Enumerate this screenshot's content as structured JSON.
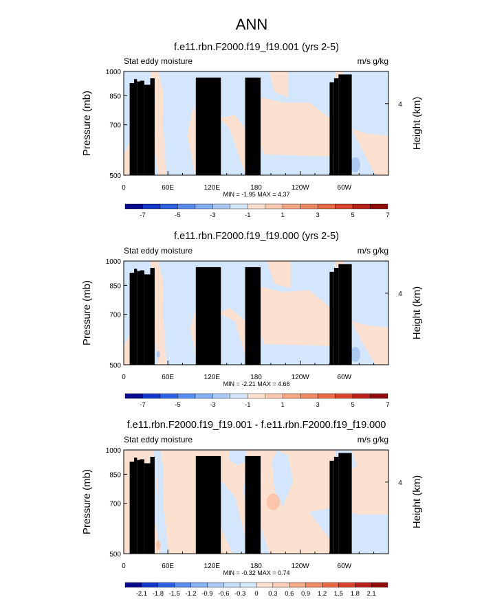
{
  "figure_title": "ANN",
  "colors": {
    "light_blue": "#d3e6fb",
    "light_peach": "#fde1d0",
    "mid_blue": "#aac8f2",
    "mid_peach": "#f9b99a",
    "orange_red": "#ef6e49",
    "topography": "#000000"
  },
  "colormaps": {
    "main": [
      "#0a0a8c",
      "#1438c8",
      "#2e62e0",
      "#5a8cee",
      "#86b0f4",
      "#aac8f2",
      "#d3e6fb",
      "#fde1d0",
      "#f9c8b0",
      "#f5a886",
      "#ef8a66",
      "#e96a46",
      "#d8452c",
      "#b8221c",
      "#900c0c"
    ],
    "diff": [
      "#0a0a8c",
      "#1438c8",
      "#2e62e0",
      "#5a8cee",
      "#86b0f4",
      "#aac8f2",
      "#c4dcf8",
      "#d3e6fb",
      "#fde1d0",
      "#fad0ba",
      "#f5a886",
      "#ef8a66",
      "#e96a46",
      "#d8452c",
      "#b8221c",
      "#900c0c"
    ]
  },
  "chart_data": [
    {
      "type": "heatmap",
      "title": "f.e11.rbn.F2000.f19_f19.001 (yrs 2-5)",
      "left_label": "Stat eddy moisture",
      "right_label": "m/s g/kg",
      "ylabel": "Pressure (mb)",
      "ylabel_right": "Height (km)",
      "yticks": [
        "500",
        "700",
        "850",
        "1000"
      ],
      "yticks_right": [
        "4"
      ],
      "xticks": [
        "0",
        "60E",
        "120E",
        "180",
        "120W",
        "60W"
      ],
      "xlim": [
        0,
        360
      ],
      "ylim": [
        1000,
        500
      ],
      "min_max": "MIN =  -1.95   MAX =   4.37",
      "colorbar_labels": [
        "-7",
        "-5",
        "-3",
        "-1",
        "1",
        "3",
        "5",
        "7"
      ],
      "colormap": "main"
    },
    {
      "type": "heatmap",
      "title": "f.e11.rbn.F2000.f19_f19.000 (yrs 2-5)",
      "left_label": "Stat eddy moisture",
      "right_label": "m/s g/kg",
      "ylabel": "Pressure (mb)",
      "ylabel_right": "Height (km)",
      "yticks": [
        "500",
        "700",
        "850",
        "1000"
      ],
      "yticks_right": [
        "4"
      ],
      "xticks": [
        "0",
        "60E",
        "120E",
        "180",
        "120W",
        "60W"
      ],
      "xlim": [
        0,
        360
      ],
      "ylim": [
        1000,
        500
      ],
      "min_max": "MIN =  -2.21   MAX =   4.66",
      "colorbar_labels": [
        "-7",
        "-5",
        "-3",
        "-1",
        "1",
        "3",
        "5",
        "7"
      ],
      "colormap": "main"
    },
    {
      "type": "heatmap",
      "title": "f.e11.rbn.F2000.f19_f19.001 - f.e11.rbn.F2000.f19_f19.000",
      "left_label": "Stat eddy moisture",
      "right_label": "m/s g/kg",
      "ylabel": "Pressure (mb)",
      "ylabel_right": "Height (km)",
      "yticks": [
        "500",
        "700",
        "850",
        "1000"
      ],
      "yticks_right": [
        "4"
      ],
      "xticks": [
        "0",
        "60E",
        "120E",
        "180",
        "120W",
        "60W"
      ],
      "xlim": [
        0,
        360
      ],
      "ylim": [
        1000,
        500
      ],
      "min_max": "MIN =  -0.32   MAX =   0.74",
      "colorbar_labels": [
        "-2.1",
        "-1.8",
        "-1.5",
        "-1.2",
        "-0.9",
        "-0.6",
        "-0.3",
        "0",
        "0.3",
        "0.6",
        "0.9",
        "1.2",
        "1.5",
        "1.8",
        "2.1"
      ],
      "colormap": "diff"
    }
  ]
}
